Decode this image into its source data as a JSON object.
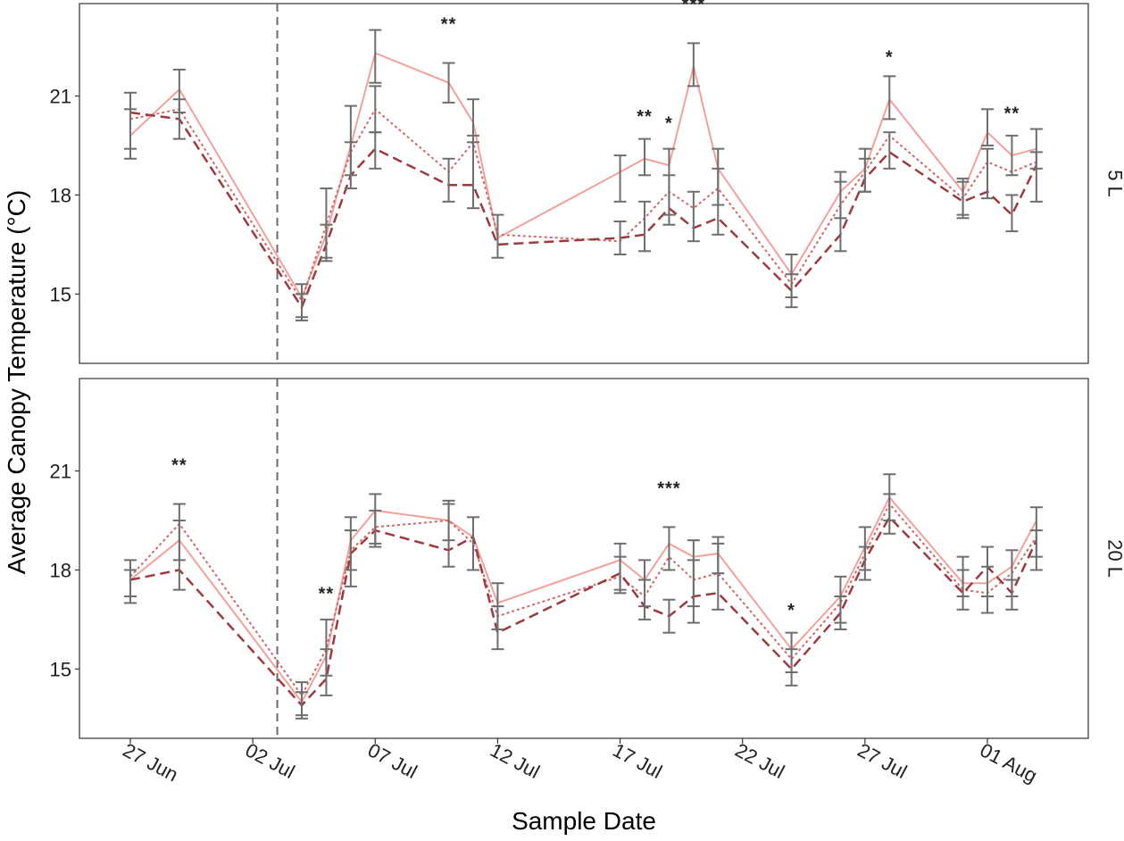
{
  "chart_data": {
    "type": "line",
    "xlabel": "Sample Date",
    "ylabel": "Average Canopy Temperature (°C)",
    "ylim": [
      12.9,
      23.8
    ],
    "yticks": [
      15,
      18,
      21
    ],
    "xlim": [
      "2021-06-25",
      "2021-08-05"
    ],
    "xticks": [
      {
        "date": "2021-06-27",
        "label": "27 Jun"
      },
      {
        "date": "2021-07-02",
        "label": "02 Jul"
      },
      {
        "date": "2021-07-07",
        "label": "07 Jul"
      },
      {
        "date": "2021-07-12",
        "label": "12 Jul"
      },
      {
        "date": "2021-07-17",
        "label": "17 Jul"
      },
      {
        "date": "2021-07-22",
        "label": "22 Jul"
      },
      {
        "date": "2021-07-27",
        "label": "27 Jul"
      },
      {
        "date": "2021-08-01",
        "label": "01 Aug"
      }
    ],
    "event_line_date": "2021-07-03",
    "x_dates": [
      "2021-06-27",
      "2021-06-29",
      "2021-07-04",
      "2021-07-05",
      "2021-07-06",
      "2021-07-07",
      "2021-07-10",
      "2021-07-11",
      "2021-07-12",
      "2021-07-17",
      "2021-07-18",
      "2021-07-19",
      "2021-07-20",
      "2021-07-21",
      "2021-07-24",
      "2021-07-26",
      "2021-07-27",
      "2021-07-28",
      "2021-07-31",
      "2021-08-01",
      "2021-08-02",
      "2021-08-03"
    ],
    "panels": [
      {
        "strip": "5 L",
        "series": [
          {
            "name": "solid",
            "color": "#f4a09b",
            "dash": "solid",
            "width": 2,
            "values": [
              19.8,
              21.2,
              14.9,
              16.8,
              19.5,
              22.3,
              21.4,
              20.2,
              16.7,
              18.7,
              19.1,
              18.9,
              21.9,
              18.8,
              15.6,
              18.1,
              18.8,
              20.9,
              18.1,
              19.9,
              19.2,
              19.4
            ]
          },
          {
            "name": "dotted",
            "color": "#d06a68",
            "dash": "3,3",
            "width": 2,
            "values": [
              20.3,
              20.6,
              14.8,
              17.1,
              19.3,
              20.6,
              18.7,
              19.6,
              16.8,
              16.6,
              17.3,
              18.1,
              17.6,
              18.2,
              15.3,
              17.7,
              18.7,
              19.8,
              17.9,
              19.0,
              18.7,
              19.0
            ]
          },
          {
            "name": "dashed",
            "color": "#9e3a3e",
            "dash": "11,6",
            "width": 2.5,
            "values": [
              20.5,
              20.3,
              14.6,
              16.5,
              18.6,
              19.4,
              18.3,
              18.3,
              16.5,
              16.7,
              16.8,
              17.6,
              17.0,
              17.3,
              15.1,
              16.8,
              18.5,
              19.3,
              17.8,
              18.1,
              17.4,
              18.9
            ]
          }
        ],
        "error_bars": [
          {
            "date": "2021-06-27",
            "low": 19.1,
            "high": 21.1
          },
          {
            "date": "2021-06-27",
            "low": 19.4,
            "high": 20.6
          },
          {
            "date": "2021-06-29",
            "low": 20.5,
            "high": 21.8
          },
          {
            "date": "2021-06-29",
            "low": 19.7,
            "high": 20.9
          },
          {
            "date": "2021-07-04",
            "low": 14.3,
            "high": 15.3
          },
          {
            "date": "2021-07-04",
            "low": 14.2,
            "high": 15.0
          },
          {
            "date": "2021-07-05",
            "low": 16.1,
            "high": 18.2
          },
          {
            "date": "2021-07-05",
            "low": 16.0,
            "high": 17.1
          },
          {
            "date": "2021-07-06",
            "low": 18.2,
            "high": 20.7
          },
          {
            "date": "2021-07-06",
            "low": 18.6,
            "high": 19.6
          },
          {
            "date": "2021-07-07",
            "low": 21.4,
            "high": 23.0
          },
          {
            "date": "2021-07-07",
            "low": 19.9,
            "high": 21.3
          },
          {
            "date": "2021-07-07",
            "low": 18.8,
            "high": 19.9
          },
          {
            "date": "2021-07-10",
            "low": 20.8,
            "high": 22.0
          },
          {
            "date": "2021-07-10",
            "low": 17.8,
            "high": 19.1
          },
          {
            "date": "2021-07-11",
            "low": 19.6,
            "high": 20.9
          },
          {
            "date": "2021-07-11",
            "low": 17.6,
            "high": 19.8
          },
          {
            "date": "2021-07-12",
            "low": 16.1,
            "high": 17.4
          },
          {
            "date": "2021-07-17",
            "low": 17.8,
            "high": 19.2
          },
          {
            "date": "2021-07-17",
            "low": 16.2,
            "high": 17.2
          },
          {
            "date": "2021-07-18",
            "low": 18.6,
            "high": 19.7
          },
          {
            "date": "2021-07-18",
            "low": 16.3,
            "high": 17.8
          },
          {
            "date": "2021-07-19",
            "low": 17.1,
            "high": 19.4
          },
          {
            "date": "2021-07-19",
            "low": 17.4,
            "high": 18.6
          },
          {
            "date": "2021-07-20",
            "low": 21.3,
            "high": 22.6
          },
          {
            "date": "2021-07-20",
            "low": 16.6,
            "high": 18.1
          },
          {
            "date": "2021-07-21",
            "low": 16.8,
            "high": 19.4
          },
          {
            "date": "2021-07-21",
            "low": 17.7,
            "high": 18.8
          },
          {
            "date": "2021-07-24",
            "low": 14.6,
            "high": 16.2
          },
          {
            "date": "2021-07-24",
            "low": 14.9,
            "high": 15.6
          },
          {
            "date": "2021-07-26",
            "low": 16.3,
            "high": 18.7
          },
          {
            "date": "2021-07-26",
            "low": 17.3,
            "high": 18.4
          },
          {
            "date": "2021-07-27",
            "low": 18.1,
            "high": 19.4
          },
          {
            "date": "2021-07-27",
            "low": 18.1,
            "high": 19.1
          },
          {
            "date": "2021-07-28",
            "low": 20.3,
            "high": 21.6
          },
          {
            "date": "2021-07-28",
            "low": 18.8,
            "high": 19.9
          },
          {
            "date": "2021-07-31",
            "low": 17.3,
            "high": 18.5
          },
          {
            "date": "2021-07-31",
            "low": 17.4,
            "high": 18.4
          },
          {
            "date": "2021-08-01",
            "low": 19.5,
            "high": 20.6
          },
          {
            "date": "2021-08-01",
            "low": 17.9,
            "high": 19.4
          },
          {
            "date": "2021-08-02",
            "low": 18.6,
            "high": 19.8
          },
          {
            "date": "2021-08-02",
            "low": 16.9,
            "high": 18.0
          },
          {
            "date": "2021-08-03",
            "low": 17.8,
            "high": 20.0
          },
          {
            "date": "2021-08-03",
            "low": 18.8,
            "high": 19.3
          }
        ],
        "significance": [
          {
            "date": "2021-07-10",
            "value": 23.0,
            "label": "**"
          },
          {
            "date": "2021-07-20",
            "value": 23.6,
            "label": "***"
          },
          {
            "date": "2021-07-18",
            "value": 20.2,
            "label": "**"
          },
          {
            "date": "2021-07-19",
            "value": 20.0,
            "label": "*"
          },
          {
            "date": "2021-07-28",
            "value": 22.0,
            "label": "*"
          },
          {
            "date": "2021-08-02",
            "value": 20.3,
            "label": "**"
          }
        ]
      },
      {
        "strip": "20 L",
        "series": [
          {
            "name": "solid",
            "color": "#f4a09b",
            "dash": "solid",
            "width": 2,
            "values": [
              17.7,
              18.9,
              14.0,
              15.4,
              18.9,
              19.8,
              19.5,
              19.0,
              17.0,
              18.3,
              17.7,
              18.8,
              18.4,
              18.5,
              15.6,
              17.2,
              18.7,
              20.2,
              17.6,
              17.6,
              18.1,
              19.5
            ]
          },
          {
            "name": "dotted",
            "color": "#d06a68",
            "dash": "3,3",
            "width": 2,
            "values": [
              17.8,
              19.4,
              14.2,
              15.6,
              18.6,
              19.3,
              19.5,
              18.8,
              16.6,
              17.8,
              17.2,
              18.4,
              17.7,
              17.9,
              15.3,
              17.0,
              18.5,
              20.0,
              17.4,
              17.3,
              17.9,
              19.0
            ]
          },
          {
            "name": "dashed",
            "color": "#9e3a3e",
            "dash": "11,6",
            "width": 2.5,
            "values": [
              17.7,
              18.0,
              13.9,
              14.7,
              18.5,
              19.2,
              18.6,
              19.0,
              16.1,
              17.9,
              16.9,
              16.6,
              17.2,
              17.3,
              15.0,
              16.7,
              18.3,
              19.6,
              17.3,
              18.1,
              17.3,
              18.9
            ]
          }
        ],
        "error_bars": [
          {
            "date": "2021-06-27",
            "low": 17.2,
            "high": 18.3
          },
          {
            "date": "2021-06-27",
            "low": 17.0,
            "high": 18.0
          },
          {
            "date": "2021-06-29",
            "low": 18.3,
            "high": 20.0
          },
          {
            "date": "2021-06-29",
            "low": 17.4,
            "high": 19.5
          },
          {
            "date": "2021-07-04",
            "low": 13.6,
            "high": 14.6
          },
          {
            "date": "2021-07-04",
            "low": 13.5,
            "high": 14.3
          },
          {
            "date": "2021-07-05",
            "low": 14.2,
            "high": 16.5
          },
          {
            "date": "2021-07-05",
            "low": 14.8,
            "high": 15.6
          },
          {
            "date": "2021-07-06",
            "low": 17.5,
            "high": 19.6
          },
          {
            "date": "2021-07-06",
            "low": 18.0,
            "high": 19.2
          },
          {
            "date": "2021-07-07",
            "low": 18.8,
            "high": 20.3
          },
          {
            "date": "2021-07-07",
            "low": 18.7,
            "high": 19.8
          },
          {
            "date": "2021-07-10",
            "low": 18.1,
            "high": 20.1
          },
          {
            "date": "2021-07-10",
            "low": 18.9,
            "high": 20.0
          },
          {
            "date": "2021-07-11",
            "low": 18.0,
            "high": 19.6
          },
          {
            "date": "2021-07-12",
            "low": 15.6,
            "high": 17.6
          },
          {
            "date": "2021-07-12",
            "low": 16.2,
            "high": 16.9
          },
          {
            "date": "2021-07-17",
            "low": 17.3,
            "high": 18.8
          },
          {
            "date": "2021-07-17",
            "low": 17.4,
            "high": 18.4
          },
          {
            "date": "2021-07-18",
            "low": 16.5,
            "high": 18.3
          },
          {
            "date": "2021-07-18",
            "low": 16.9,
            "high": 17.7
          },
          {
            "date": "2021-07-19",
            "low": 16.1,
            "high": 17.1
          },
          {
            "date": "2021-07-19",
            "low": 18.0,
            "high": 19.3
          },
          {
            "date": "2021-07-20",
            "low": 16.4,
            "high": 18.9
          },
          {
            "date": "2021-07-20",
            "low": 16.9,
            "high": 18.3
          },
          {
            "date": "2021-07-21",
            "low": 16.8,
            "high": 19.0
          },
          {
            "date": "2021-07-21",
            "low": 17.9,
            "high": 18.8
          },
          {
            "date": "2021-07-24",
            "low": 14.5,
            "high": 16.1
          },
          {
            "date": "2021-07-24",
            "low": 14.9,
            "high": 15.6
          },
          {
            "date": "2021-07-26",
            "low": 16.2,
            "high": 17.8
          },
          {
            "date": "2021-07-26",
            "low": 16.4,
            "high": 17.2
          },
          {
            "date": "2021-07-27",
            "low": 17.7,
            "high": 19.3
          },
          {
            "date": "2021-07-27",
            "low": 18.0,
            "high": 18.7
          },
          {
            "date": "2021-07-28",
            "low": 19.1,
            "high": 20.9
          },
          {
            "date": "2021-07-28",
            "low": 19.5,
            "high": 20.3
          },
          {
            "date": "2021-07-31",
            "low": 16.8,
            "high": 18.4
          },
          {
            "date": "2021-07-31",
            "low": 17.2,
            "high": 18.0
          },
          {
            "date": "2021-08-01",
            "low": 16.7,
            "high": 18.7
          },
          {
            "date": "2021-08-01",
            "low": 17.2,
            "high": 18.1
          },
          {
            "date": "2021-08-02",
            "low": 16.8,
            "high": 18.6
          },
          {
            "date": "2021-08-02",
            "low": 17.2,
            "high": 17.7
          },
          {
            "date": "2021-08-03",
            "low": 18.0,
            "high": 19.9
          },
          {
            "date": "2021-08-03",
            "low": 18.4,
            "high": 19.2
          }
        ],
        "significance": [
          {
            "date": "2021-06-29",
            "value": 21.0,
            "label": "**"
          },
          {
            "date": "2021-07-05",
            "value": 17.1,
            "label": "**"
          },
          {
            "date": "2021-07-19",
            "value": 20.3,
            "label": "***"
          },
          {
            "date": "2021-07-24",
            "value": 16.6,
            "label": "*"
          }
        ]
      }
    ]
  }
}
